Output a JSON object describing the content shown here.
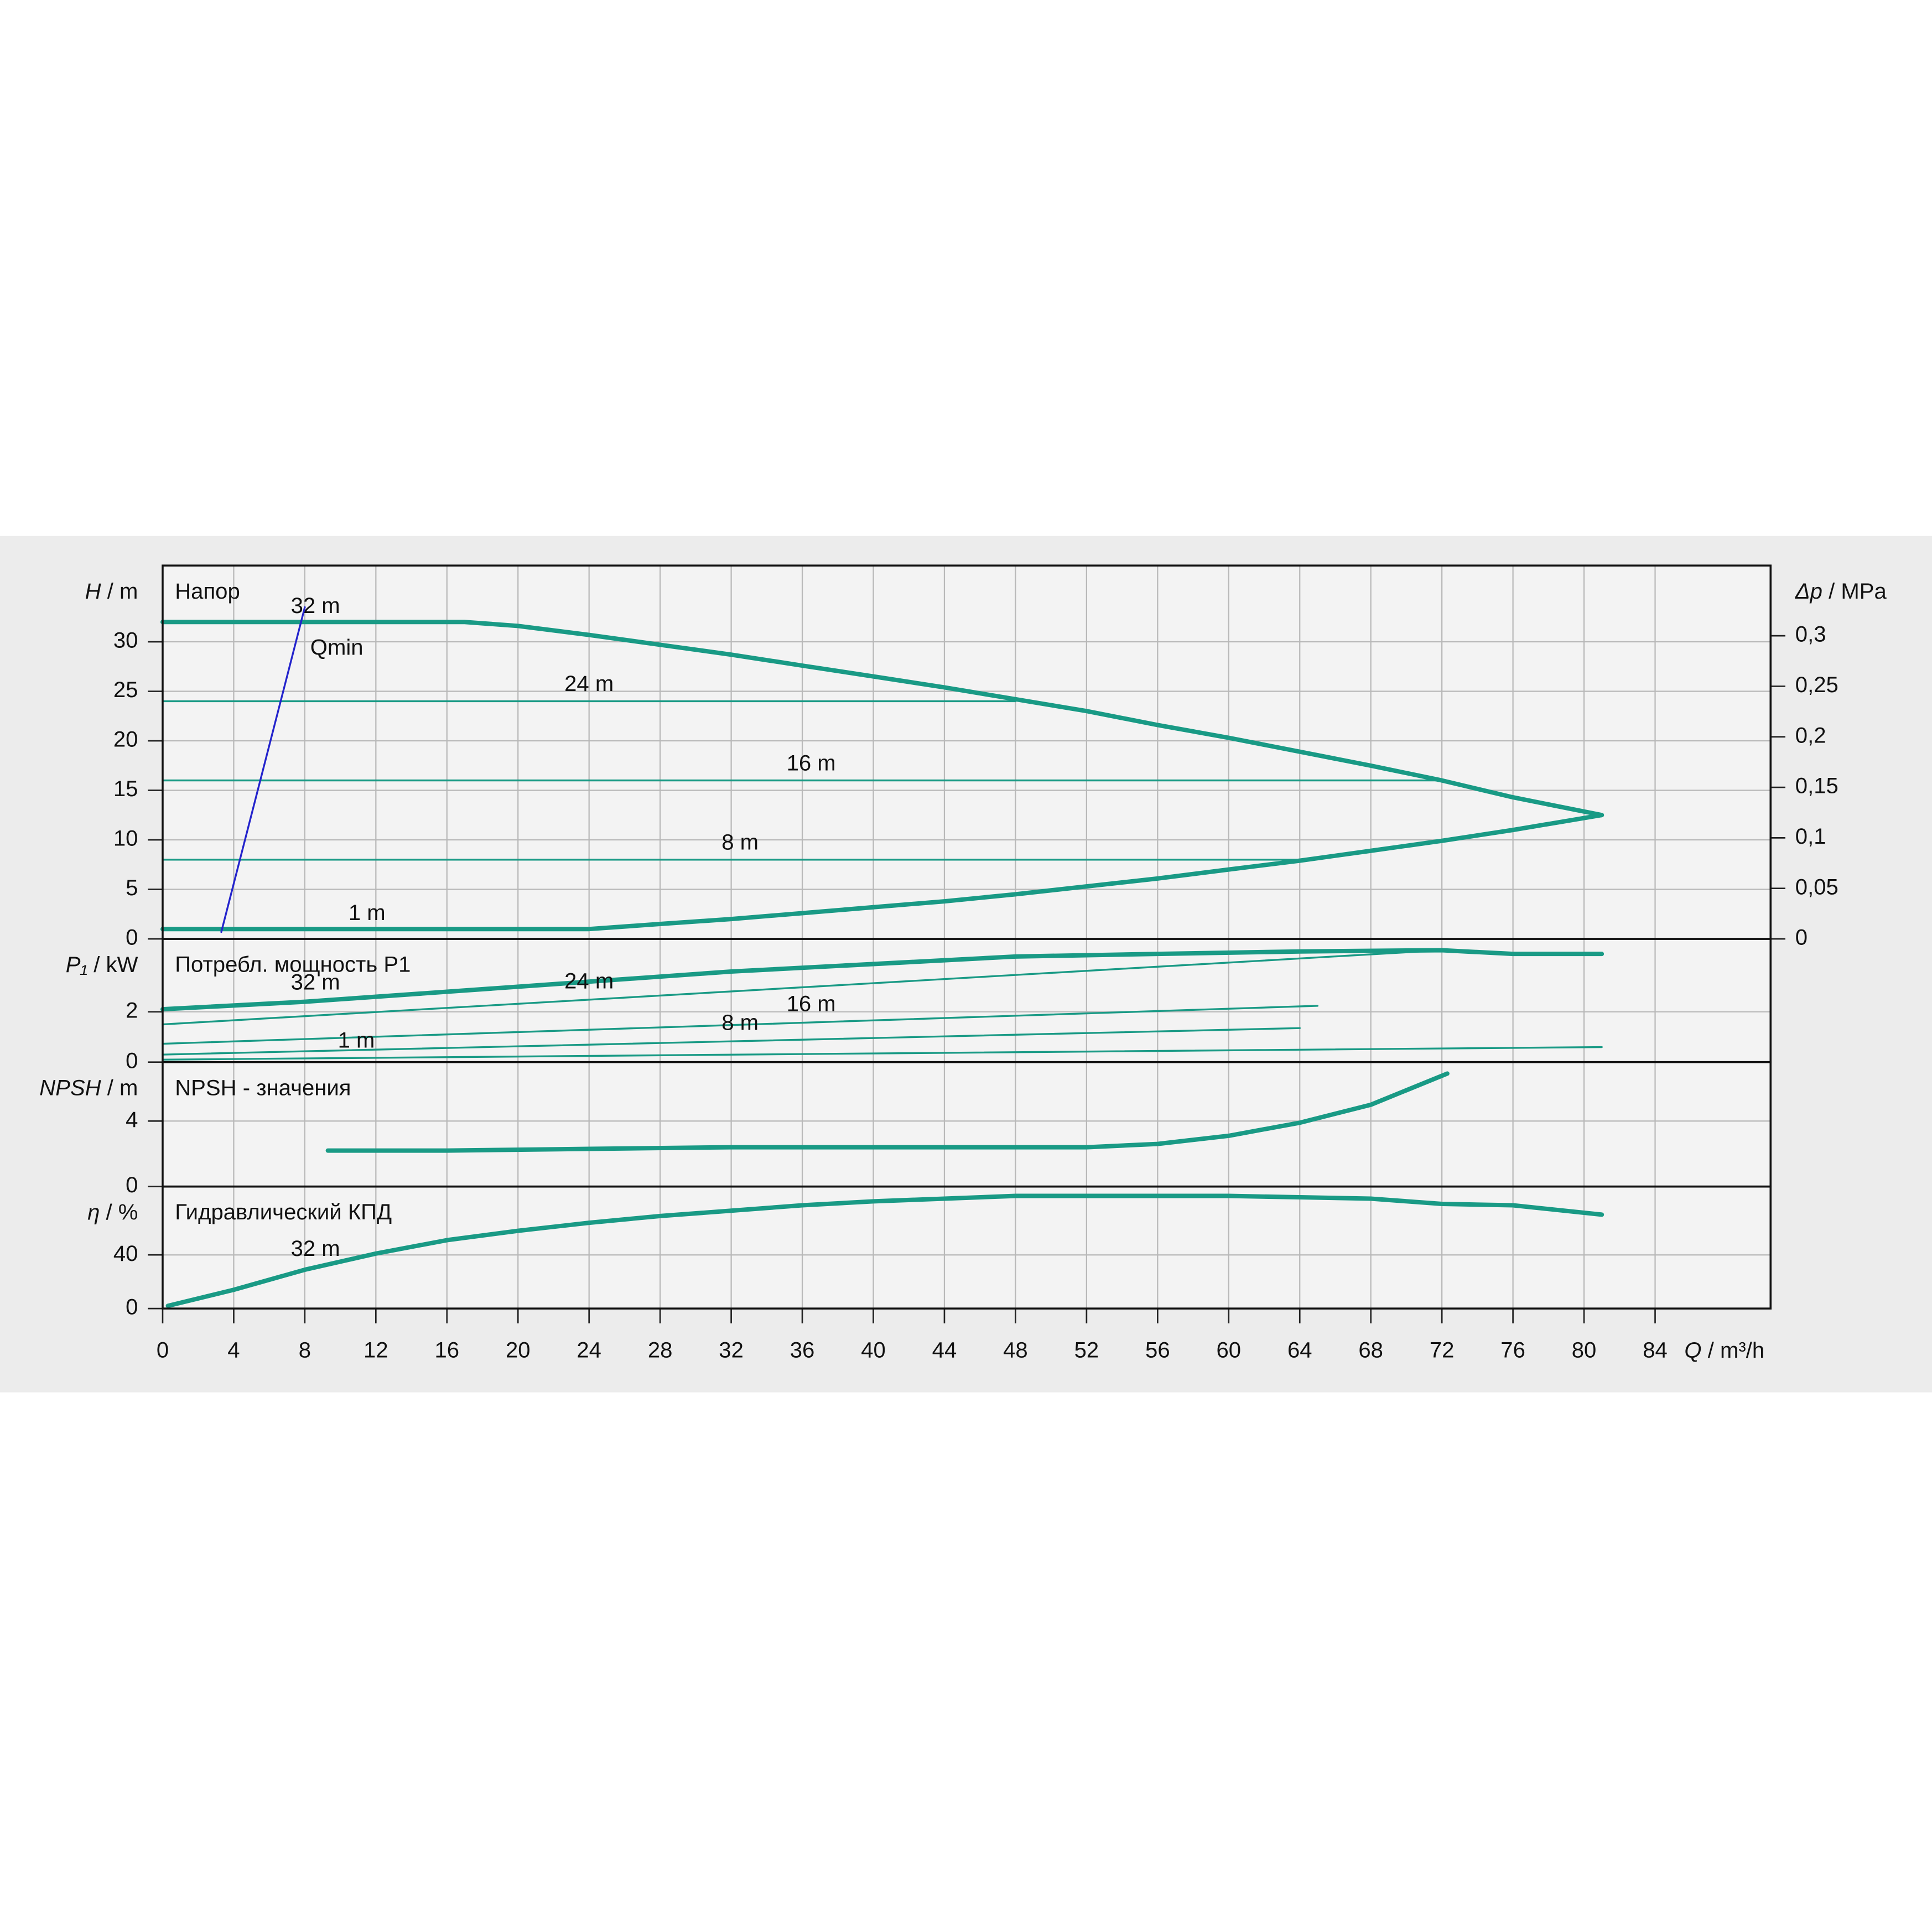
{
  "chart_data": [
    {
      "type": "line",
      "title": "Напор",
      "y_symbol": "H",
      "y_unit": "/ m",
      "y2_symbol": "Δp",
      "y2_unit": "/ MPa",
      "xlim": [
        0,
        90.5
      ],
      "ylim": [
        0,
        37.7
      ],
      "yticks": [
        0,
        5,
        10,
        15,
        20,
        25,
        30
      ],
      "y2lim": [
        0,
        0.3695
      ],
      "y2ticks": [
        0,
        {
          "value": 0.05,
          "label": "0,05"
        },
        {
          "value": 0.1,
          "label": "0,1"
        },
        {
          "value": 0.15,
          "label": "0,15"
        },
        {
          "value": 0.2,
          "label": "0,2"
        },
        {
          "value": 0.25,
          "label": "0,25"
        },
        {
          "value": 0.3,
          "label": "0,3"
        }
      ],
      "grid": true,
      "series": [
        {
          "name": "32 m",
          "color": "#199a85",
          "x": [
            0,
            17,
            20,
            24,
            28,
            32,
            36,
            40,
            44,
            48,
            52,
            56,
            60,
            64,
            68,
            72,
            76,
            81
          ],
          "values": [
            32,
            32,
            31.6,
            30.7,
            29.7,
            28.7,
            27.6,
            26.5,
            25.4,
            24.2,
            23,
            21.6,
            20.3,
            18.9,
            17.5,
            16,
            14.3,
            12.5
          ]
        },
        {
          "name": "24 m",
          "color": "#199a85",
          "x": [
            0,
            48
          ],
          "values": [
            24,
            24
          ]
        },
        {
          "name": "16 m",
          "color": "#199a85",
          "x": [
            0,
            72
          ],
          "values": [
            16,
            16
          ]
        },
        {
          "name": "8 m",
          "color": "#199a85",
          "x": [
            0,
            64
          ],
          "values": [
            8,
            8
          ]
        },
        {
          "name": "1 m",
          "color": "#199a85",
          "x": [
            0,
            24,
            28,
            32,
            36,
            40,
            44,
            48,
            52,
            56,
            60,
            64,
            68,
            72,
            76,
            81
          ],
          "values": [
            1,
            1,
            1.5,
            2,
            2.6,
            3.2,
            3.8,
            4.5,
            5.3,
            6.1,
            7,
            7.9,
            8.9,
            9.9,
            11,
            12.5
          ]
        },
        {
          "name": "Qmin",
          "color": "#2424cc",
          "x": [
            3.3,
            8
          ],
          "values": [
            0.7,
            33.5
          ]
        }
      ]
    },
    {
      "type": "line",
      "title": "Потребл. мощность P1",
      "y_symbol": "P₁",
      "y_unit": "/ kW",
      "xlim": [
        0,
        90.5
      ],
      "ylim": [
        0,
        4.9
      ],
      "yticks": [
        0,
        2
      ],
      "grid": true,
      "series": [
        {
          "name": "32 m",
          "color": "#199a85",
          "x": [
            0,
            8,
            16,
            24,
            32,
            40,
            48,
            56,
            64,
            72,
            76,
            81
          ],
          "values": [
            2.1,
            2.4,
            2.8,
            3.2,
            3.6,
            3.9,
            4.2,
            4.3,
            4.4,
            4.45,
            4.3,
            4.3
          ]
        },
        {
          "name": "24 m",
          "color": "#199a85",
          "x": [
            0,
            72
          ],
          "values": [
            1.5,
            4.45
          ]
        },
        {
          "name": "16 m",
          "color": "#199a85",
          "x": [
            0,
            65
          ],
          "values": [
            0.73,
            2.24
          ]
        },
        {
          "name": "8 m",
          "color": "#199a85",
          "x": [
            0,
            64
          ],
          "values": [
            0.3,
            1.35
          ]
        },
        {
          "name": "1 m",
          "color": "#199a85",
          "x": [
            0,
            81
          ],
          "values": [
            0.1,
            0.6
          ]
        }
      ]
    },
    {
      "type": "line",
      "title": "NPSH - значения",
      "y_symbol": "NPSH",
      "y_unit": "/ m",
      "xlim": [
        0,
        90.5
      ],
      "ylim": [
        0,
        7.6
      ],
      "yticks": [
        0,
        4
      ],
      "grid": true,
      "series": [
        {
          "color": "#199a85",
          "x": [
            9.3,
            16,
            24,
            32,
            40,
            48,
            52,
            56,
            60,
            64,
            68,
            72.3
          ],
          "values": [
            2.2,
            2.2,
            2.3,
            2.4,
            2.4,
            2.4,
            2.4,
            2.6,
            3.1,
            3.9,
            5.0,
            6.9
          ]
        }
      ]
    },
    {
      "type": "line",
      "title": "Гидравлический КПД",
      "y_symbol": "η",
      "y_unit": "/ %",
      "x_symbol": "Q",
      "x_unit": "/ m³/h",
      "xlim": [
        0,
        90.5
      ],
      "ylim": [
        0,
        91
      ],
      "yticks": [
        0,
        40
      ],
      "grid": true,
      "xticks": [
        0,
        4,
        8,
        12,
        16,
        20,
        24,
        28,
        32,
        36,
        40,
        44,
        48,
        52,
        56,
        60,
        64,
        68,
        72,
        76,
        80,
        84
      ],
      "series": [
        {
          "name": "32 m",
          "color": "#199a85",
          "x": [
            0.3,
            4,
            8,
            12,
            16,
            20,
            24,
            28,
            32,
            36,
            40,
            44,
            48,
            56,
            60,
            64,
            68,
            72,
            76,
            81
          ],
          "values": [
            2,
            14,
            29,
            41,
            51,
            58,
            64,
            69,
            73,
            77,
            80,
            82,
            84,
            84,
            84,
            83,
            82,
            78,
            77,
            70
          ]
        }
      ]
    }
  ]
}
